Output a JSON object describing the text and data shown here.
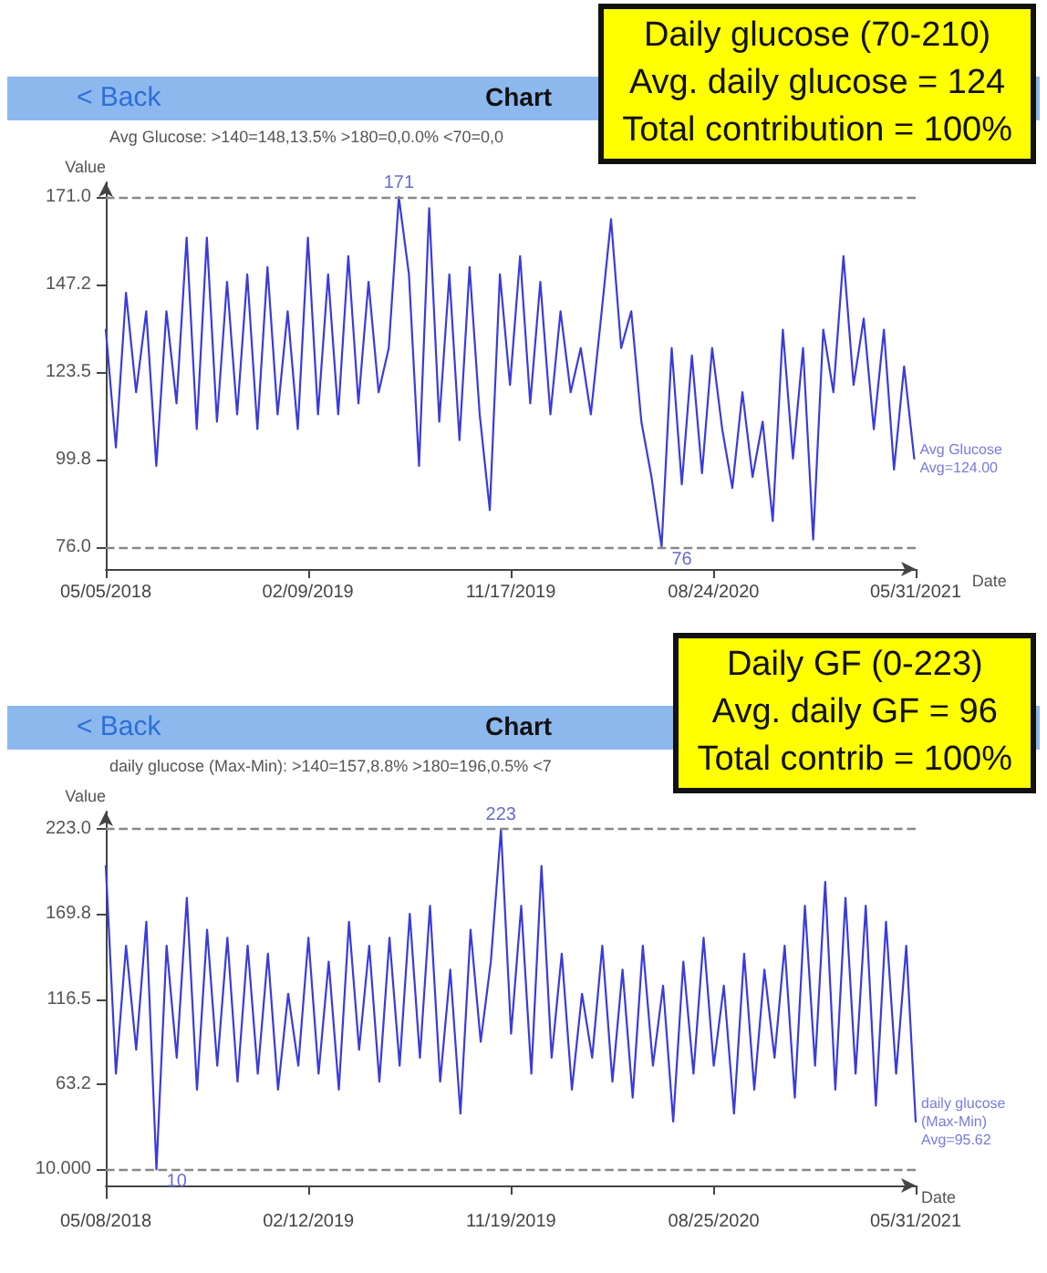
{
  "chart_data": [
    {
      "type": "line",
      "title": "Chart",
      "subtitle": "Avg Glucose: >140=148,13.5%  >180=0,0.0%  <70=0,0",
      "ylabel": "Value",
      "xlabel": "Date",
      "legend": false,
      "grid": false,
      "marker": "none",
      "line_style": "solid",
      "x": [
        "2018-05-05",
        "2018-05-19",
        "2018-06-02",
        "2018-06-16",
        "2018-06-30",
        "2018-07-14",
        "2018-07-28",
        "2018-08-11",
        "2018-08-25",
        "2018-09-08",
        "2018-09-22",
        "2018-10-06",
        "2018-10-20",
        "2018-11-03",
        "2018-11-17",
        "2018-12-01",
        "2018-12-15",
        "2018-12-29",
        "2019-01-12",
        "2019-01-26",
        "2019-02-09",
        "2019-02-23",
        "2019-03-09",
        "2019-03-23",
        "2019-04-06",
        "2019-04-20",
        "2019-05-04",
        "2019-05-18",
        "2019-06-01",
        "2019-06-15",
        "2019-06-29",
        "2019-07-13",
        "2019-07-27",
        "2019-08-10",
        "2019-08-24",
        "2019-09-07",
        "2019-09-21",
        "2019-10-05",
        "2019-10-19",
        "2019-11-02",
        "2019-11-16",
        "2019-11-30",
        "2019-12-14",
        "2019-12-28",
        "2020-01-11",
        "2020-01-25",
        "2020-02-08",
        "2020-02-22",
        "2020-03-07",
        "2020-03-21",
        "2020-04-04",
        "2020-04-18",
        "2020-05-02",
        "2020-05-16",
        "2020-05-30",
        "2020-06-13",
        "2020-06-27",
        "2020-07-11",
        "2020-07-25",
        "2020-08-08",
        "2020-08-22",
        "2020-09-05",
        "2020-09-19",
        "2020-10-03",
        "2020-10-17",
        "2020-10-31",
        "2020-11-14",
        "2020-11-28",
        "2020-12-12",
        "2020-12-26",
        "2021-01-09",
        "2021-01-23",
        "2021-02-06",
        "2021-02-20",
        "2021-03-06",
        "2021-03-20",
        "2021-04-03",
        "2021-04-17",
        "2021-05-01",
        "2021-05-15",
        "2021-05-29"
      ],
      "series": [
        {
          "name": "Avg Glucose",
          "color": "#3b3bdb",
          "values": [
            135,
            103,
            145,
            118,
            140,
            98,
            140,
            115,
            160,
            108,
            160,
            110,
            148,
            112,
            150,
            108,
            152,
            112,
            140,
            108,
            160,
            112,
            150,
            112,
            155,
            115,
            148,
            118,
            130,
            171,
            150,
            98,
            168,
            110,
            150,
            105,
            152,
            112,
            86,
            150,
            120,
            155,
            115,
            148,
            112,
            140,
            118,
            130,
            112,
            138,
            165,
            130,
            140,
            110,
            95,
            76,
            130,
            93,
            128,
            96,
            130,
            108,
            92,
            118,
            95,
            110,
            83,
            135,
            100,
            130,
            78,
            135,
            118,
            155,
            120,
            138,
            108,
            135,
            97,
            125,
            100
          ]
        }
      ],
      "xlim": [
        "2018-05-05",
        "2021-05-31"
      ],
      "xticks": [
        {
          "value": "2018-05-05",
          "label": "05/05/2018"
        },
        {
          "value": "2019-02-09",
          "label": "02/09/2019"
        },
        {
          "value": "2019-11-17",
          "label": "11/17/2019"
        },
        {
          "value": "2020-08-24",
          "label": "08/24/2020"
        },
        {
          "value": "2021-05-31",
          "label": "05/31/2021"
        }
      ],
      "ylim": [
        70,
        175
      ],
      "yticks": [
        {
          "value": 76,
          "label": "76.0"
        },
        {
          "value": 99.8,
          "label": "99.8"
        },
        {
          "value": 123.5,
          "label": "123.5"
        },
        {
          "value": 147.2,
          "label": "147.2"
        },
        {
          "value": 171,
          "label": "171.0"
        }
      ],
      "ref_lines": [
        {
          "axis": "y",
          "value": 171,
          "color": "#888888",
          "line_style": "dashed"
        },
        {
          "axis": "y",
          "value": 76,
          "color": "#888888",
          "line_style": "dashed"
        }
      ],
      "annotations": [
        "< Back",
        "Avg=124.00",
        "Daily glucose (70-210)",
        "Avg. daily glucose = 124",
        "Total contribution = 100%",
        {
          "text": "171",
          "x": "2019-06-15",
          "y": 171
        },
        {
          "text": "76",
          "x": "2020-06-13",
          "y": 76
        }
      ]
    },
    {
      "type": "line",
      "title": "Chart",
      "subtitle": "daily glucose (Max-Min): >140=157,8.8%  >180=196,0.5%  <7",
      "ylabel": "Value",
      "xlabel": "Date",
      "legend": false,
      "grid": false,
      "marker": "none",
      "line_style": "solid",
      "x": [
        "2018-05-08",
        "2018-05-22",
        "2018-06-05",
        "2018-06-19",
        "2018-07-03",
        "2018-07-17",
        "2018-07-31",
        "2018-08-14",
        "2018-08-28",
        "2018-09-11",
        "2018-09-25",
        "2018-10-09",
        "2018-10-23",
        "2018-11-06",
        "2018-11-20",
        "2018-12-04",
        "2018-12-18",
        "2019-01-01",
        "2019-01-15",
        "2019-01-29",
        "2019-02-12",
        "2019-02-26",
        "2019-03-12",
        "2019-03-26",
        "2019-04-09",
        "2019-04-23",
        "2019-05-07",
        "2019-05-21",
        "2019-06-04",
        "2019-06-18",
        "2019-07-02",
        "2019-07-16",
        "2019-07-30",
        "2019-08-13",
        "2019-08-27",
        "2019-09-10",
        "2019-09-24",
        "2019-10-08",
        "2019-10-22",
        "2019-11-05",
        "2019-11-19",
        "2019-12-03",
        "2019-12-17",
        "2019-12-31",
        "2020-01-14",
        "2020-01-28",
        "2020-02-11",
        "2020-02-25",
        "2020-03-10",
        "2020-03-24",
        "2020-04-07",
        "2020-04-21",
        "2020-05-05",
        "2020-05-19",
        "2020-06-02",
        "2020-06-16",
        "2020-06-30",
        "2020-07-14",
        "2020-07-28",
        "2020-08-11",
        "2020-08-25",
        "2020-09-08",
        "2020-09-22",
        "2020-10-06",
        "2020-10-20",
        "2020-11-03",
        "2020-11-17",
        "2020-12-01",
        "2020-12-15",
        "2020-12-29",
        "2021-01-12",
        "2021-01-26",
        "2021-02-09",
        "2021-02-23",
        "2021-03-09",
        "2021-03-23",
        "2021-04-06",
        "2021-04-20",
        "2021-05-04",
        "2021-05-18",
        "2021-05-31"
      ],
      "series": [
        {
          "name": "daily glucose (Max-Min)",
          "color": "#3b3bdb",
          "values": [
            200,
            70,
            150,
            85,
            165,
            10,
            150,
            80,
            180,
            60,
            160,
            75,
            155,
            65,
            150,
            70,
            145,
            60,
            120,
            75,
            155,
            70,
            140,
            60,
            165,
            85,
            150,
            65,
            155,
            75,
            170,
            80,
            175,
            65,
            135,
            45,
            160,
            90,
            140,
            223,
            95,
            175,
            70,
            200,
            80,
            145,
            60,
            120,
            80,
            150,
            65,
            135,
            55,
            150,
            75,
            125,
            40,
            140,
            70,
            155,
            75,
            125,
            45,
            145,
            60,
            135,
            80,
            150,
            55,
            175,
            75,
            190,
            60,
            180,
            70,
            175,
            50,
            165,
            70,
            150,
            40
          ]
        }
      ],
      "xlim": [
        "2018-05-08",
        "2021-05-31"
      ],
      "xticks": [
        {
          "value": "2018-05-08",
          "label": "05/08/2018"
        },
        {
          "value": "2019-02-12",
          "label": "02/12/2019"
        },
        {
          "value": "2019-11-19",
          "label": "11/19/2019"
        },
        {
          "value": "2020-08-25",
          "label": "08/25/2020"
        },
        {
          "value": "2021-05-31",
          "label": "05/31/2021"
        }
      ],
      "ylim": [
        -8,
        234
      ],
      "yticks": [
        {
          "value": 10,
          "label": "10.000"
        },
        {
          "value": 63.2,
          "label": "63.2"
        },
        {
          "value": 116.5,
          "label": "116.5"
        },
        {
          "value": 169.8,
          "label": "169.8"
        },
        {
          "value": 223,
          "label": "223.0"
        }
      ],
      "ref_lines": [
        {
          "axis": "y",
          "value": 223,
          "color": "#888888",
          "line_style": "dashed"
        },
        {
          "axis": "y",
          "value": 10,
          "color": "#888888",
          "line_style": "dashed"
        }
      ],
      "annotations": [
        "< Back",
        "Avg=95.62",
        "Daily GF (0-223)",
        "Avg. daily GF = 96",
        "Total contrib = 100%",
        {
          "text": "223",
          "x": "2019-11-05",
          "y": 223
        },
        {
          "text": "10",
          "x": "2018-07-17",
          "y": 10
        }
      ]
    }
  ]
}
